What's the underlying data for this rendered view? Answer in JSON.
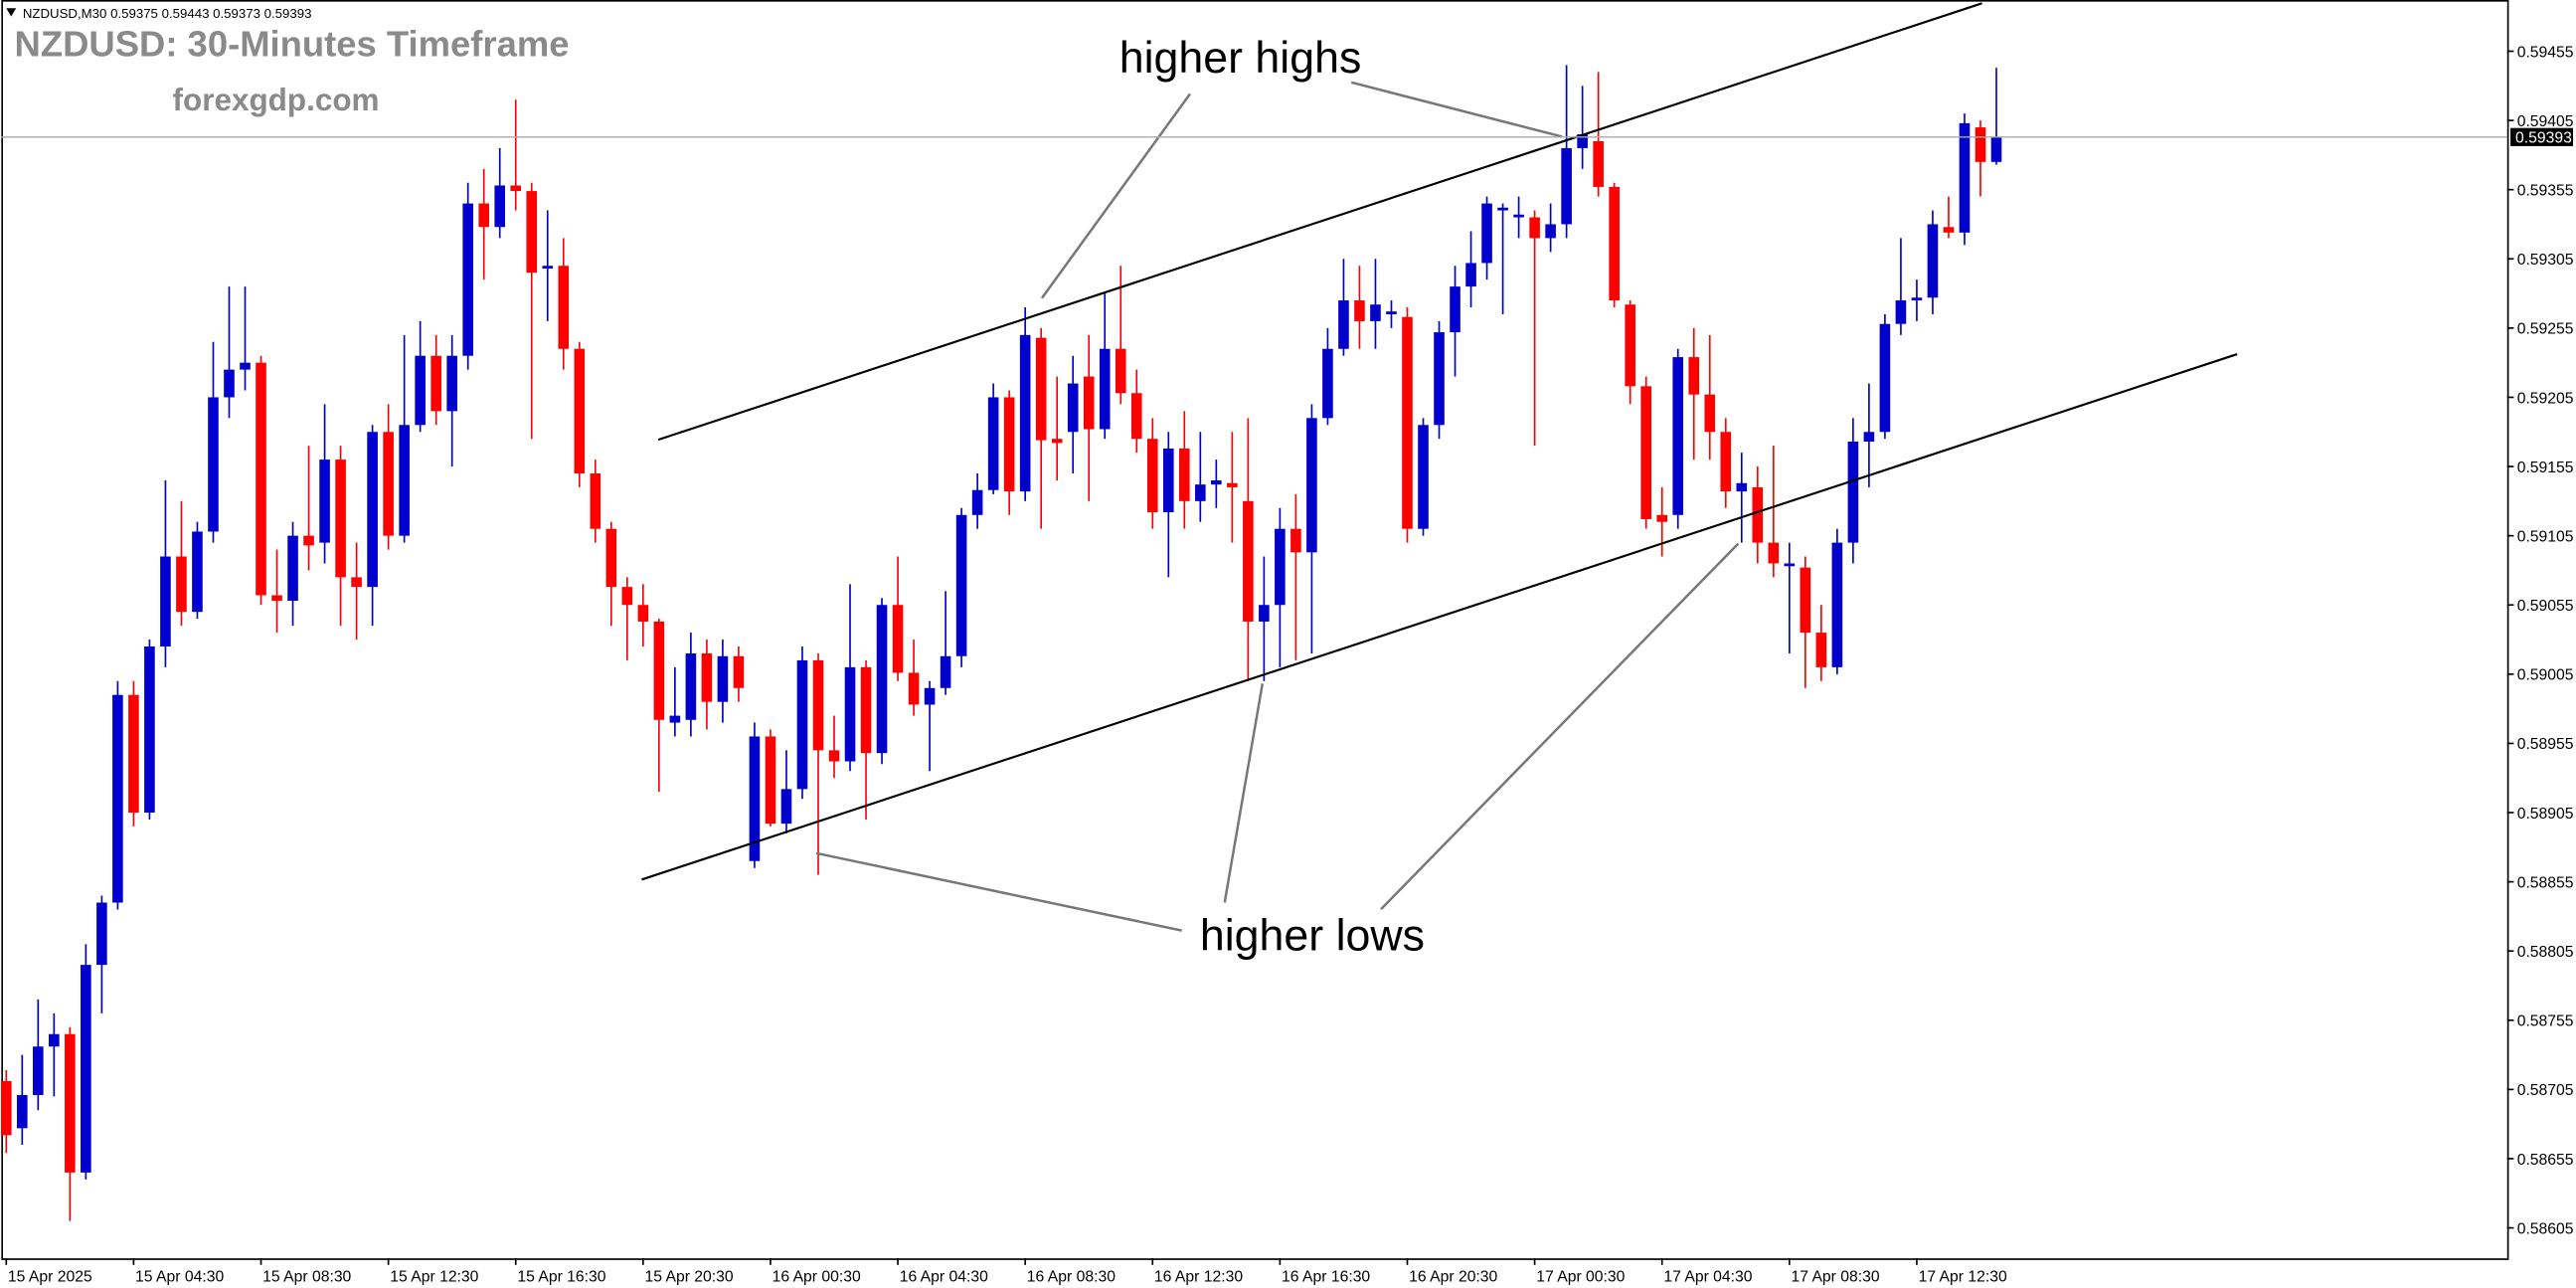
{
  "chart_data": {
    "type": "candlestick",
    "info": "NZDUSD,M30  0.59375 0.59443 0.59373 0.59393",
    "title": "NZDUSD: 30-Minutes Timeframe",
    "subtitle": "forexgdp.com",
    "annotations": [
      "higher highs",
      "higher lows"
    ],
    "up_color": "#0000cd",
    "down_color": "#ff0000",
    "current_price": 0.59393,
    "ylim": [
      0.58583,
      0.59492
    ],
    "yticks": [
      0.59455,
      0.59405,
      0.59355,
      0.59305,
      0.59255,
      0.59205,
      0.59155,
      0.59105,
      0.59055,
      0.59005,
      0.58955,
      0.58905,
      0.58855,
      0.58805,
      0.58755,
      0.58705,
      0.58655,
      0.58605
    ],
    "categories": [
      "15 Apr 2025",
      null,
      null,
      null,
      null,
      null,
      null,
      null,
      "15 Apr 04:30",
      null,
      null,
      null,
      null,
      null,
      null,
      null,
      "15 Apr 08:30",
      null,
      null,
      null,
      null,
      null,
      null,
      null,
      "15 Apr 12:30",
      null,
      null,
      null,
      null,
      null,
      null,
      null,
      "15 Apr 16:30",
      null,
      null,
      null,
      null,
      null,
      null,
      null,
      "15 Apr 20:30",
      null,
      null,
      null,
      null,
      null,
      null,
      null,
      "16 Apr 00:30",
      null,
      null,
      null,
      null,
      null,
      null,
      null,
      "16 Apr 04:30",
      null,
      null,
      null,
      null,
      null,
      null,
      null,
      "16 Apr 08:30",
      null,
      null,
      null,
      null,
      null,
      null,
      null,
      "16 Apr 12:30",
      null,
      null,
      null,
      null,
      null,
      null,
      null,
      "16 Apr 16:30",
      null,
      null,
      null,
      null,
      null,
      null,
      null,
      "16 Apr 20:30",
      null,
      null,
      null,
      null,
      null,
      null,
      null,
      "17 Apr 00:30",
      null,
      null,
      null,
      null,
      null,
      null,
      null,
      "17 Apr 04:30",
      null,
      null,
      null,
      null,
      null,
      null,
      null,
      "17 Apr 08:30",
      null,
      null,
      null,
      null,
      null,
      null,
      null,
      "17 Apr 12:30",
      null,
      null,
      null,
      null,
      null
    ],
    "open": [
      0.58711,
      0.58677,
      0.58701,
      0.58736,
      0.58745,
      0.58645,
      0.58795,
      0.5884,
      0.5899,
      0.58905,
      0.59025,
      0.5909,
      0.5905,
      0.59108,
      0.59205,
      0.59225,
      0.5923,
      0.59062,
      0.59058,
      0.59105,
      0.591,
      0.5916,
      0.59075,
      0.59068,
      0.5918,
      0.59105,
      0.59185,
      0.59235,
      0.59195,
      0.59235,
      0.59345,
      0.59328,
      0.59358,
      0.59354,
      0.59298,
      0.593,
      0.5924,
      0.5915,
      0.5911,
      0.59068,
      0.59055,
      0.59043,
      0.5897,
      0.58972,
      0.5902,
      0.58985,
      0.59018,
      0.5887,
      0.5896,
      0.58897,
      0.58922,
      0.59015,
      0.5895,
      0.58942,
      0.5901,
      0.58948,
      0.59055,
      0.59006,
      0.58983,
      0.58995,
      0.59018,
      0.5912,
      0.59138,
      0.59205,
      0.59137,
      0.59248,
      0.59175,
      0.5918,
      0.5922,
      0.59182,
      0.5924,
      0.59208,
      0.59175,
      0.59122,
      0.59168,
      0.5913,
      0.59142,
      0.59143,
      0.5913,
      0.59043,
      0.59055,
      0.5911,
      0.59093,
      0.5919,
      0.5924,
      0.59275,
      0.5926,
      0.59265,
      0.59263,
      0.5911,
      0.59185,
      0.59252,
      0.59285,
      0.59302,
      0.5934,
      0.59335,
      0.59335,
      0.5932,
      0.5933,
      0.59385,
      0.5939,
      0.59357,
      0.59272,
      0.59213,
      0.5912,
      0.5912,
      0.59234,
      0.59207,
      0.5918,
      0.59137,
      0.5914,
      0.591,
      0.59083,
      0.59082,
      0.59035,
      0.5901,
      0.591,
      0.59173,
      0.5918,
      0.59258,
      0.59275,
      0.59277,
      0.59328,
      0.59324,
      0.594,
      0.59375
    ],
    "high": [
      0.58719,
      0.5873,
      0.5877,
      0.5876,
      0.5875,
      0.5881,
      0.58845,
      0.59,
      0.59,
      0.5903,
      0.59145,
      0.5913,
      0.59115,
      0.59245,
      0.59285,
      0.59285,
      0.59235,
      0.59095,
      0.59115,
      0.5917,
      0.592,
      0.5917,
      0.591,
      0.59185,
      0.592,
      0.5925,
      0.5926,
      0.5925,
      0.5925,
      0.5936,
      0.5937,
      0.59385,
      0.5942,
      0.5936,
      0.5934,
      0.5932,
      0.59245,
      0.5916,
      0.59115,
      0.59075,
      0.5907,
      0.59045,
      0.5901,
      0.59035,
      0.5903,
      0.5903,
      0.59025,
      0.5897,
      0.58965,
      0.5895,
      0.59025,
      0.5902,
      0.58975,
      0.5907,
      0.59015,
      0.5906,
      0.5909,
      0.5903,
      0.59,
      0.59065,
      0.59125,
      0.5915,
      0.59215,
      0.5921,
      0.5927,
      0.59255,
      0.5922,
      0.59235,
      0.5925,
      0.5928,
      0.593,
      0.59225,
      0.5919,
      0.5918,
      0.59195,
      0.5918,
      0.5916,
      0.5918,
      0.5919,
      0.5909,
      0.59125,
      0.59135,
      0.592,
      0.59255,
      0.59305,
      0.593,
      0.59305,
      0.59275,
      0.5927,
      0.5919,
      0.5926,
      0.593,
      0.59325,
      0.5935,
      0.59345,
      0.5935,
      0.5934,
      0.59345,
      0.59445,
      0.5943,
      0.5944,
      0.5936,
      0.59275,
      0.5922,
      0.5914,
      0.5924,
      0.59255,
      0.5925,
      0.5919,
      0.59165,
      0.59155,
      0.5917,
      0.591,
      0.5909,
      0.59055,
      0.5911,
      0.5919,
      0.59215,
      0.59265,
      0.5932,
      0.5929,
      0.5934,
      0.5935,
      0.5941,
      0.59405,
      0.59443
    ],
    "low": [
      0.58659,
      0.58665,
      0.5869,
      0.587,
      0.5861,
      0.5864,
      0.5876,
      0.58835,
      0.58895,
      0.589,
      0.5901,
      0.5904,
      0.59045,
      0.591,
      0.5919,
      0.5921,
      0.59055,
      0.59035,
      0.5904,
      0.5908,
      0.59085,
      0.5904,
      0.5903,
      0.5904,
      0.59095,
      0.591,
      0.5918,
      0.59185,
      0.59155,
      0.59225,
      0.5929,
      0.5932,
      0.5934,
      0.59175,
      0.5926,
      0.59225,
      0.5914,
      0.591,
      0.5904,
      0.59015,
      0.59025,
      0.5892,
      0.5896,
      0.5896,
      0.58965,
      0.5897,
      0.58985,
      0.58865,
      0.58895,
      0.5889,
      0.58915,
      0.5886,
      0.5893,
      0.58935,
      0.589,
      0.5894,
      0.59,
      0.58975,
      0.58935,
      0.5899,
      0.5901,
      0.5911,
      0.59135,
      0.5912,
      0.5913,
      0.5911,
      0.59145,
      0.5915,
      0.5913,
      0.59175,
      0.592,
      0.59165,
      0.5911,
      0.59075,
      0.5911,
      0.59115,
      0.59125,
      0.591,
      0.59,
      0.59,
      0.5901,
      0.59015,
      0.5902,
      0.59185,
      0.59235,
      0.5924,
      0.5924,
      0.59255,
      0.591,
      0.59105,
      0.59175,
      0.5922,
      0.5927,
      0.5929,
      0.59265,
      0.5932,
      0.5917,
      0.5931,
      0.5932,
      0.5937,
      0.5935,
      0.5927,
      0.592,
      0.5911,
      0.5909,
      0.5911,
      0.5916,
      0.5916,
      0.59125,
      0.591,
      0.59085,
      0.59075,
      0.5902,
      0.58995,
      0.59,
      0.59005,
      0.59085,
      0.5914,
      0.59175,
      0.5925,
      0.5926,
      0.59265,
      0.5932,
      0.59315,
      0.5935,
      0.59373
    ],
    "close": [
      0.58672,
      0.58701,
      0.58736,
      0.58745,
      0.58645,
      0.58795,
      0.5884,
      0.5899,
      0.58905,
      0.59025,
      0.5909,
      0.5905,
      0.59108,
      0.59205,
      0.59225,
      0.5923,
      0.59062,
      0.59058,
      0.59105,
      0.59098,
      0.5916,
      0.59075,
      0.59068,
      0.5918,
      0.59105,
      0.59185,
      0.59235,
      0.59195,
      0.59235,
      0.59345,
      0.59328,
      0.59358,
      0.59354,
      0.59295,
      0.593,
      0.5924,
      0.5915,
      0.5911,
      0.59068,
      0.59055,
      0.59043,
      0.58972,
      0.58975,
      0.5902,
      0.58985,
      0.59018,
      0.58995,
      0.5896,
      0.58897,
      0.58922,
      0.59015,
      0.5895,
      0.58942,
      0.5901,
      0.58948,
      0.59055,
      0.59006,
      0.58983,
      0.58995,
      0.59018,
      0.5912,
      0.59138,
      0.59205,
      0.59137,
      0.5925,
      0.59174,
      0.59172,
      0.59215,
      0.59182,
      0.5924,
      0.59208,
      0.59175,
      0.59122,
      0.59168,
      0.5913,
      0.59142,
      0.59145,
      0.5914,
      0.59043,
      0.59055,
      0.5911,
      0.59093,
      0.5919,
      0.5924,
      0.59275,
      0.5926,
      0.59272,
      0.59267,
      0.5911,
      0.59185,
      0.59252,
      0.59285,
      0.59302,
      0.59345,
      0.59342,
      0.59337,
      0.5932,
      0.5933,
      0.59385,
      0.59395,
      0.59357,
      0.59275,
      0.59213,
      0.59117,
      0.59115,
      0.59234,
      0.59207,
      0.5918,
      0.59137,
      0.59143,
      0.591,
      0.59085,
      0.59085,
      0.59035,
      0.5901,
      0.591,
      0.59173,
      0.5918,
      0.59258,
      0.59275,
      0.59277,
      0.5933,
      0.59324,
      0.59403,
      0.59375,
      0.59393
    ]
  }
}
